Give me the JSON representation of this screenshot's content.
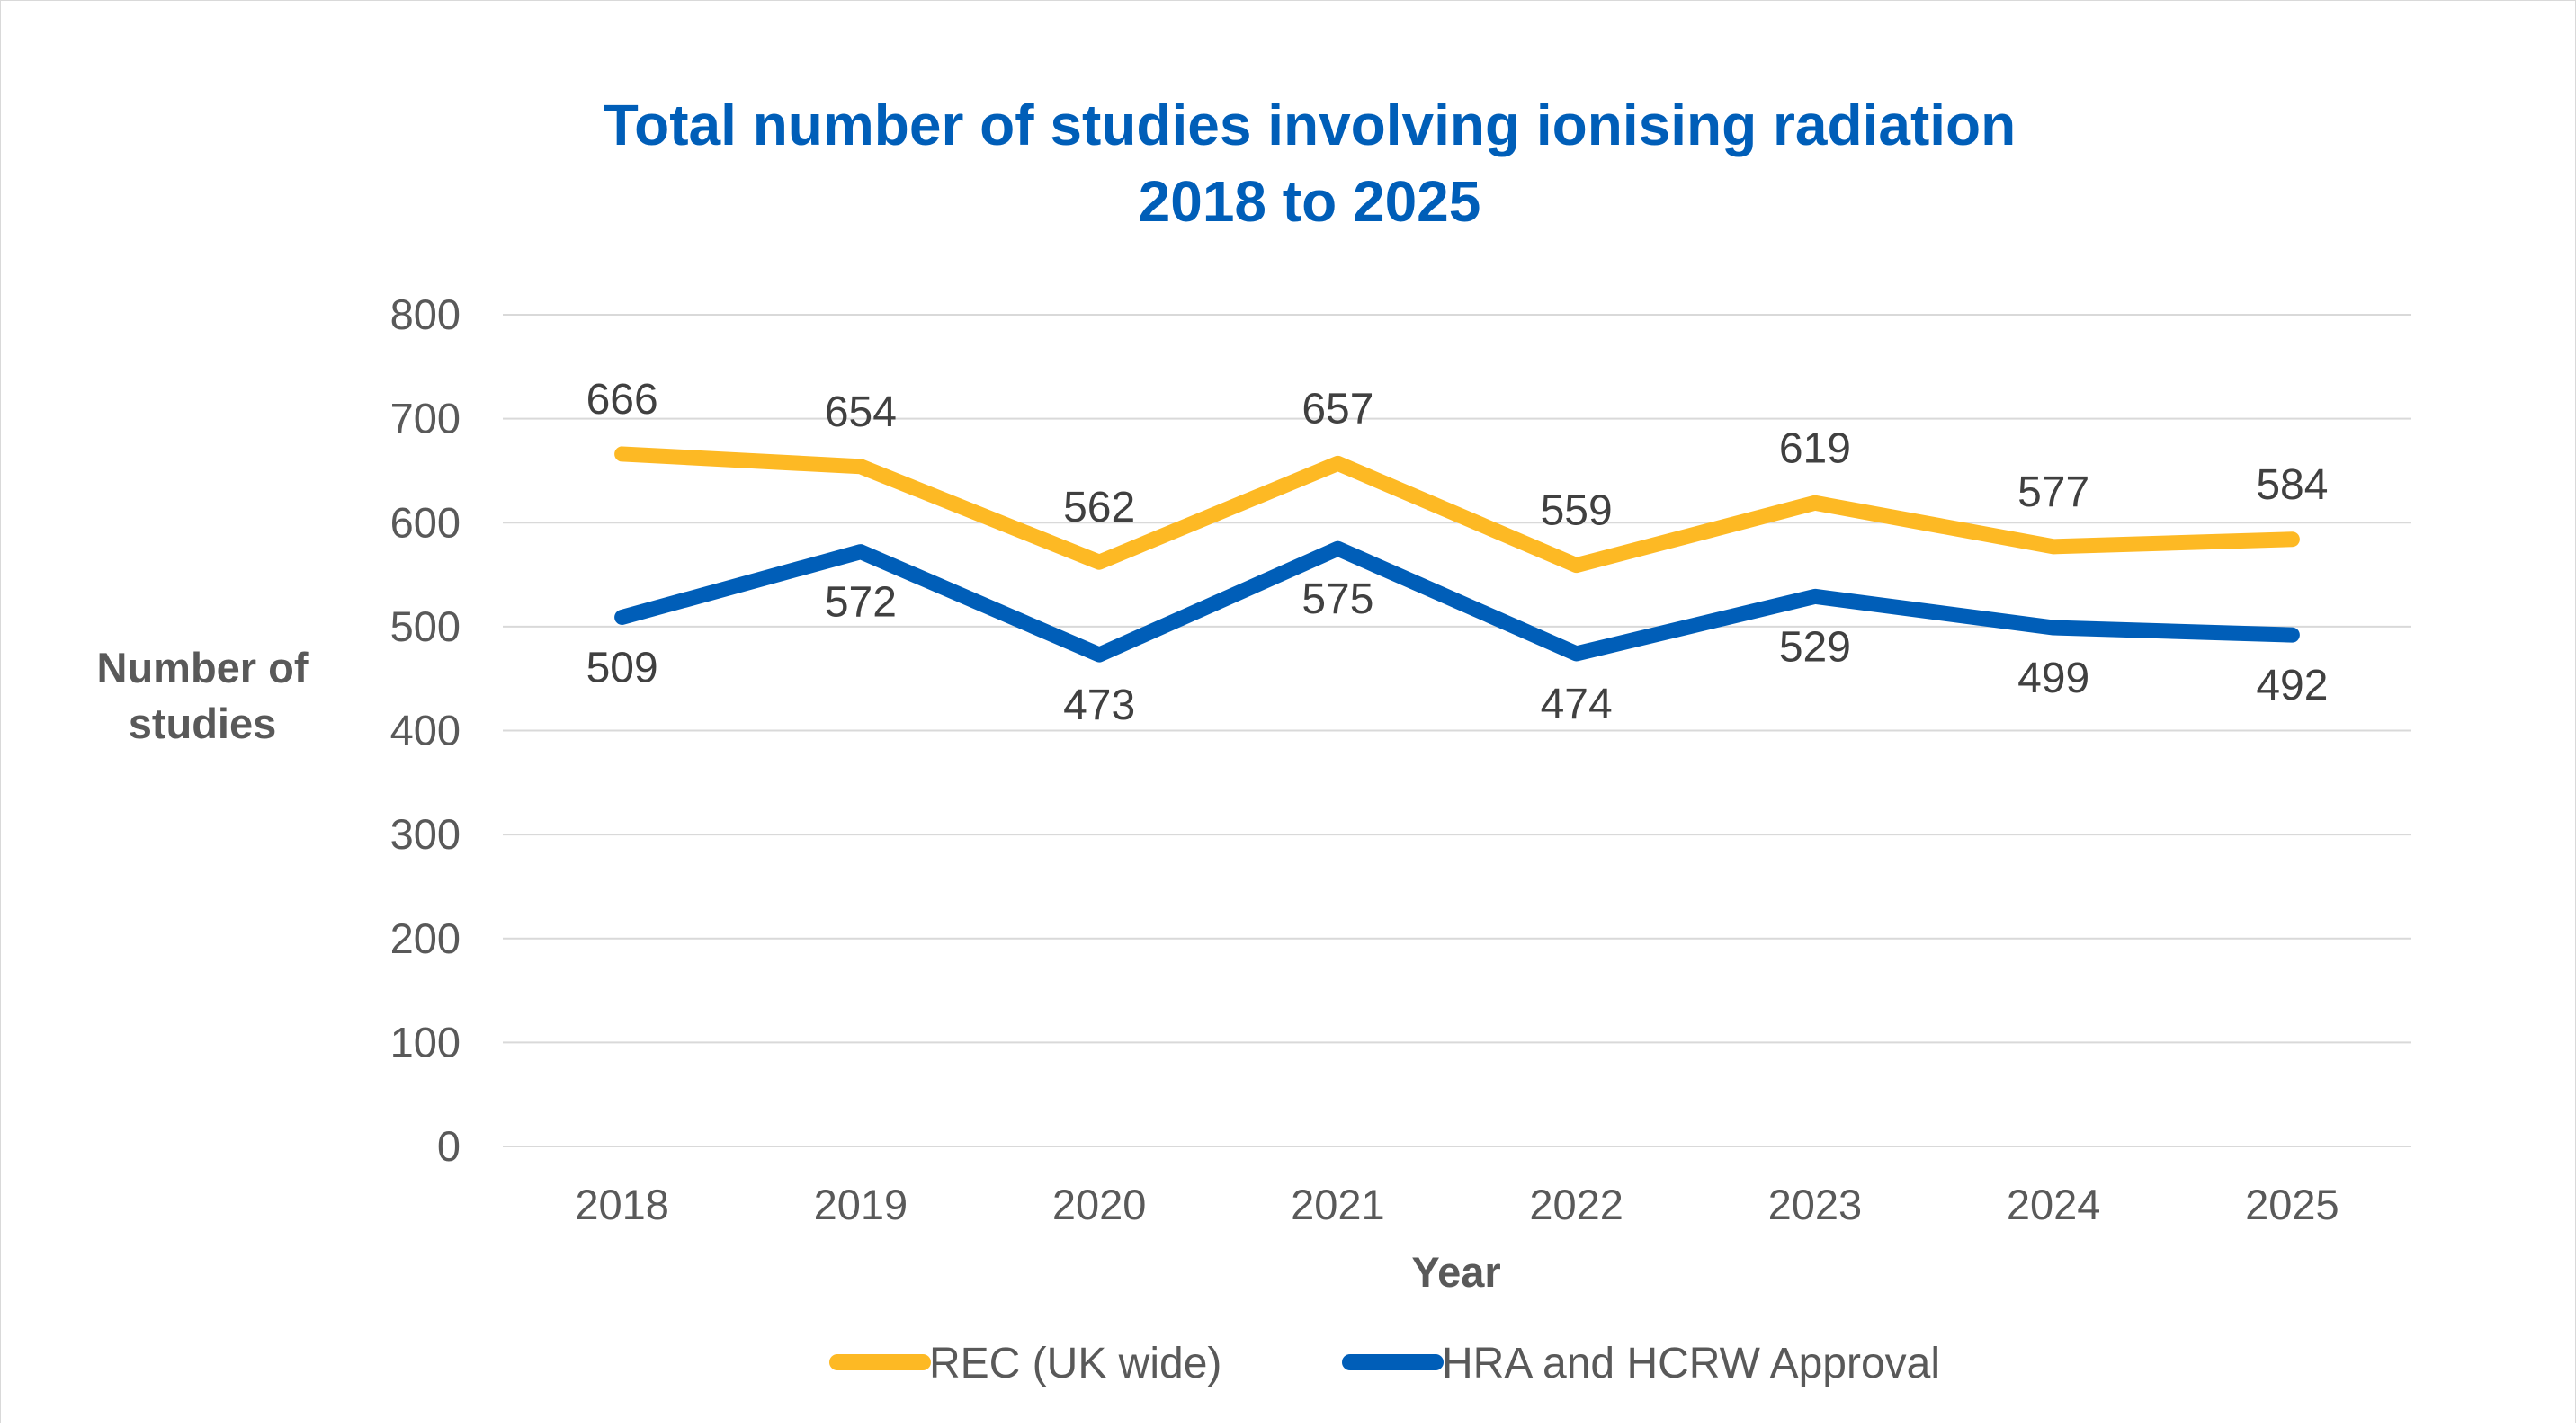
{
  "chart_data": {
    "type": "line",
    "title_lines": [
      "Total number of studies involving ionising radiation",
      "2018 to 2025"
    ],
    "xlabel": "Year",
    "ylabel_lines": [
      "Number of",
      "studies"
    ],
    "categories": [
      "2018",
      "2019",
      "2020",
      "2021",
      "2022",
      "2023",
      "2024",
      "2025"
    ],
    "ylim": [
      0,
      800
    ],
    "y_ticks": [
      0,
      100,
      200,
      300,
      400,
      500,
      600,
      700,
      800
    ],
    "grid": true,
    "legend_position": "bottom",
    "series": [
      {
        "name": "REC (UK wide)",
        "color": "#FDB924",
        "label_position": "above",
        "values": [
          666,
          654,
          562,
          657,
          559,
          619,
          577,
          584
        ]
      },
      {
        "name": "HRA and HCRW Approval",
        "color": "#005EB8",
        "label_position": "below",
        "values": [
          509,
          572,
          473,
          575,
          474,
          529,
          499,
          492
        ]
      }
    ],
    "colors": {
      "title": "#005EB8",
      "text": "#595959",
      "data_label": "#404040",
      "grid": "#d9d9d9"
    }
  }
}
